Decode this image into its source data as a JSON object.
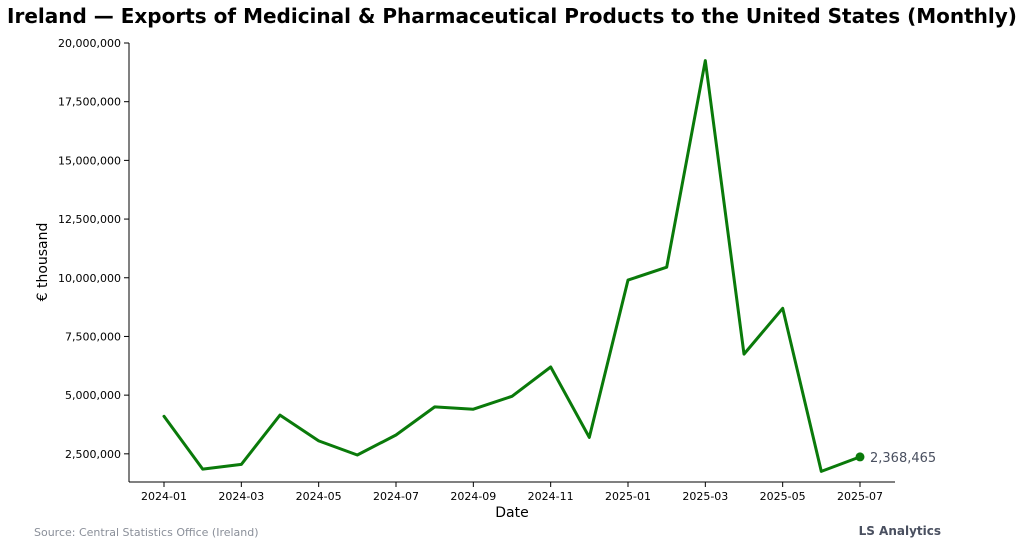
{
  "chart_data": {
    "type": "line",
    "title": "Ireland — Exports of Medicinal & Pharmaceutical Products to the United States (Monthly)",
    "xlabel": "Date",
    "ylabel": "€ thousand",
    "x": [
      "2024-01",
      "2024-02",
      "2024-03",
      "2024-04",
      "2024-05",
      "2024-06",
      "2024-07",
      "2024-08",
      "2024-09",
      "2024-10",
      "2024-11",
      "2024-12",
      "2025-01",
      "2025-02",
      "2025-03",
      "2025-04",
      "2025-05",
      "2025-06",
      "2025-07"
    ],
    "x_tick_labels": [
      "2024-01",
      "2024-03",
      "2024-05",
      "2024-07",
      "2024-09",
      "2024-11",
      "2025-01",
      "2025-03",
      "2025-05",
      "2025-07"
    ],
    "y_tick_labels": [
      "2,500,000",
      "5,000,000",
      "7,500,000",
      "10,000,000",
      "12,500,000",
      "15,000,000",
      "17,500,000",
      "20,000,000"
    ],
    "y_ticks": [
      2500000,
      5000000,
      7500000,
      10000000,
      12500000,
      15000000,
      17500000,
      20000000
    ],
    "ylim": [
      1300000,
      20000000
    ],
    "series": [
      {
        "color": "#0a7a0a",
        "values": [
          4100000,
          1850000,
          2050000,
          4150000,
          3050000,
          2450000,
          3300000,
          4500000,
          4400000,
          4950000,
          6200000,
          3200000,
          9900000,
          10450000,
          19250000,
          6750000,
          8700000,
          1750000,
          2368465
        ]
      }
    ],
    "end_label": "2,368,465",
    "grid": false
  },
  "footer": {
    "source": "Source: Central Statistics Office (Ireland)",
    "brand": "LS Analytics"
  }
}
